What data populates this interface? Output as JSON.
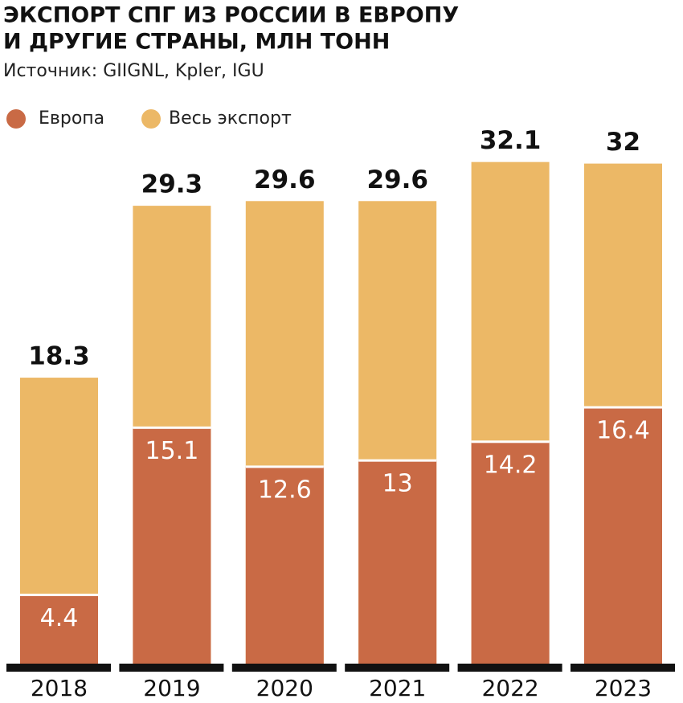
{
  "chart_data": {
    "type": "bar",
    "title": [
      "ЭКСПОРТ СПГ ИЗ РОССИИ В ЕВРОПУ",
      "И ДРУГИЕ СТРАНЫ, МЛН ТОНН"
    ],
    "subtitle": "Источник: GIIGNL, Kpler, IGU",
    "categories": [
      "2018",
      "2019",
      "2020",
      "2021",
      "2022",
      "2023"
    ],
    "series": [
      {
        "name": "Европа",
        "color": "#c96a45",
        "values": [
          4.4,
          15.1,
          12.6,
          13,
          14.2,
          16.4
        ]
      },
      {
        "name": "Весь экспорт",
        "color": "#ecb866",
        "values": [
          18.3,
          29.3,
          29.6,
          29.6,
          32.1,
          32
        ]
      }
    ]
  }
}
